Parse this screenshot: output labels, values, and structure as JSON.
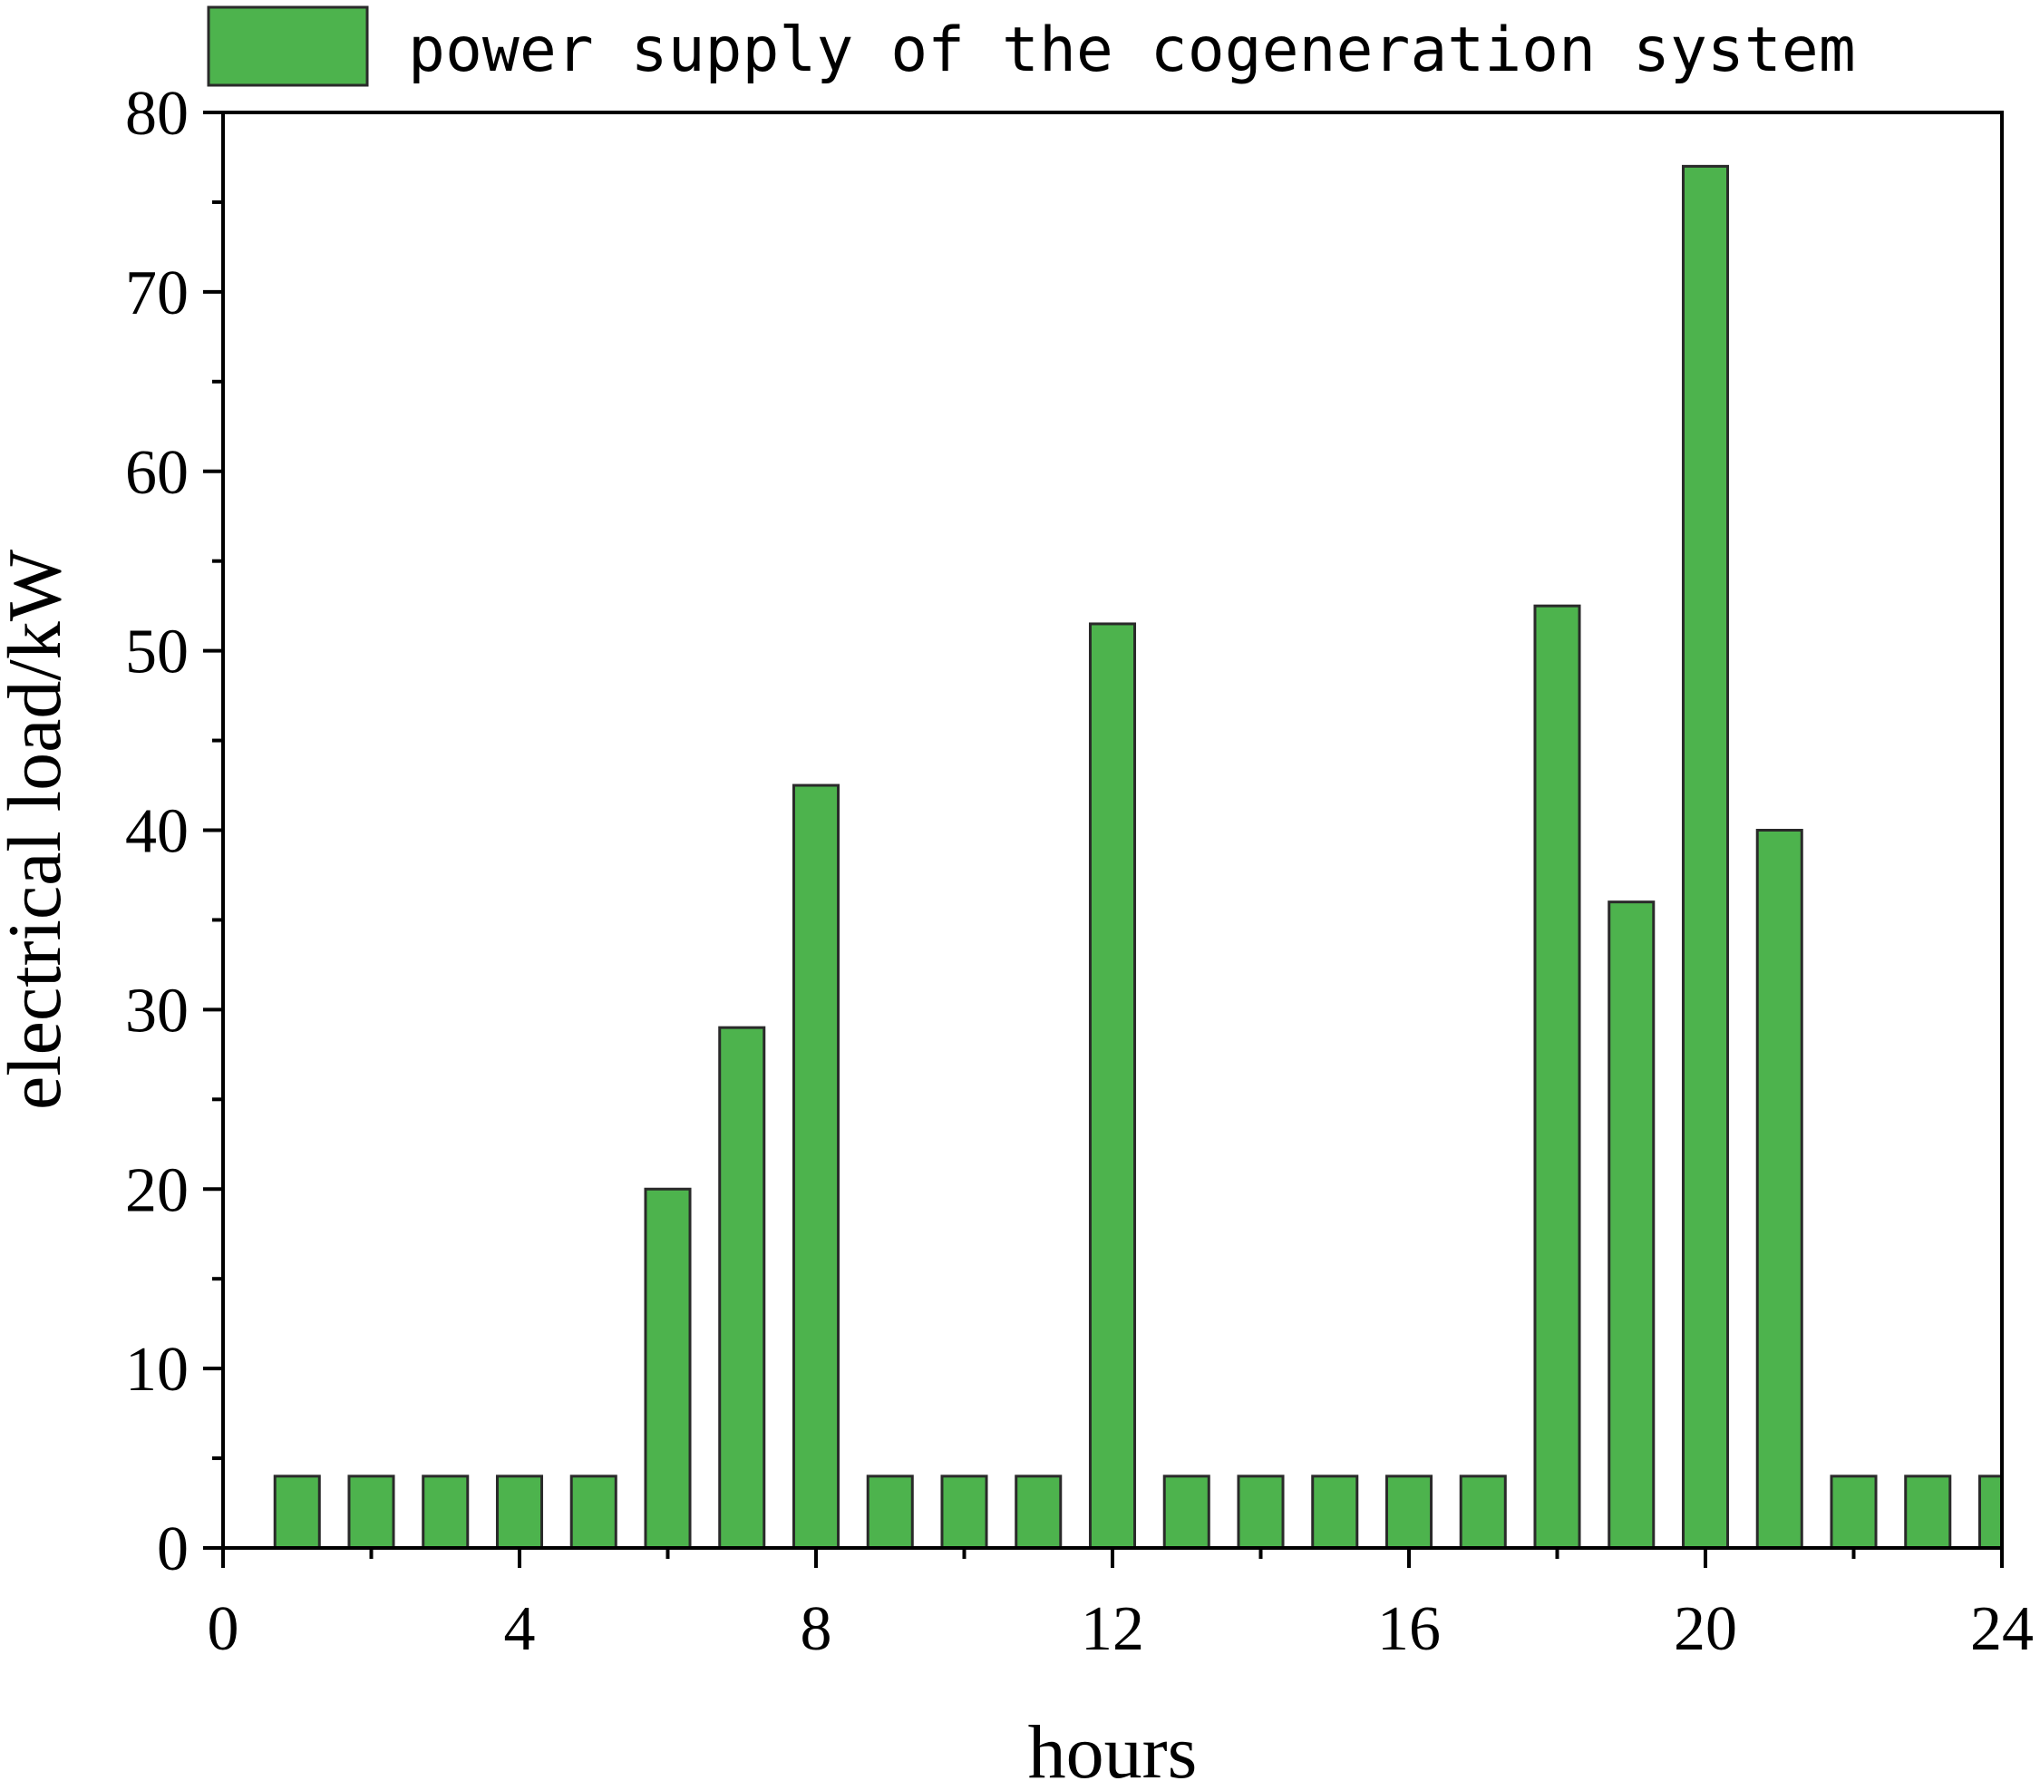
{
  "chart_data": {
    "type": "bar",
    "xlabel": "hours",
    "ylabel": "electrical load/kW",
    "xlim": [
      0,
      24
    ],
    "ylim": [
      0,
      80
    ],
    "xticks": [
      0,
      4,
      8,
      12,
      16,
      20,
      24
    ],
    "yticks": [
      0,
      10,
      20,
      30,
      40,
      50,
      60,
      70,
      80
    ],
    "grid": false,
    "legend_position": "top",
    "bar_color": "#4db34d",
    "bar_edge_color": "#2a2a2a",
    "series": [
      {
        "name": "power supply of the cogeneration system",
        "x": [
          1,
          2,
          3,
          4,
          5,
          6,
          7,
          8,
          9,
          10,
          11,
          12,
          13,
          14,
          15,
          16,
          17,
          18,
          19,
          20,
          21,
          22,
          23,
          24
        ],
        "values": [
          4,
          4,
          4,
          4,
          4,
          20,
          29,
          42.5,
          4,
          4,
          4,
          51.5,
          4,
          4,
          4,
          4,
          4,
          52.5,
          36,
          77,
          40,
          4,
          4,
          4
        ]
      }
    ]
  }
}
